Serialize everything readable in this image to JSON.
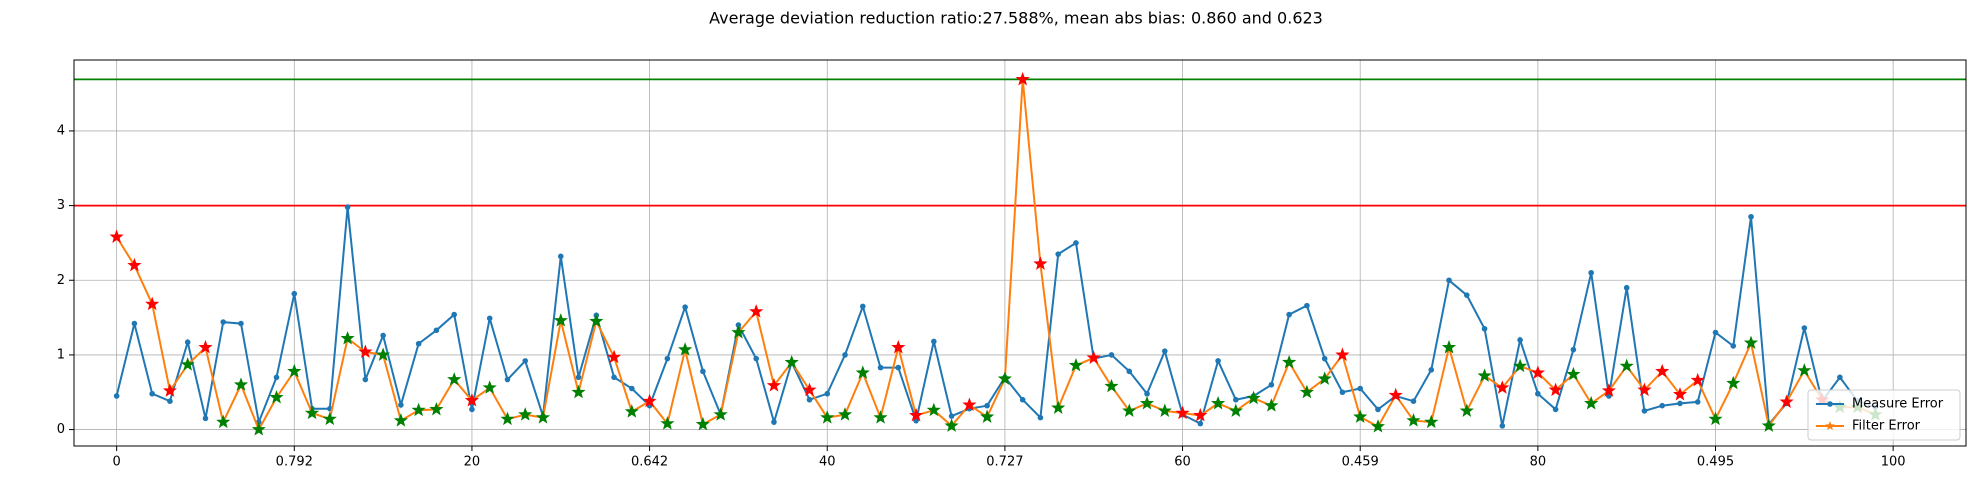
{
  "chart_data": {
    "type": "line",
    "title": "Average deviation reduction ratio:27.588%, mean abs bias: 0.860 and 0.623",
    "x": [
      0,
      1,
      2,
      3,
      4,
      5,
      6,
      7,
      8,
      9,
      10,
      11,
      12,
      13,
      14,
      15,
      16,
      17,
      18,
      19,
      20,
      21,
      22,
      23,
      24,
      25,
      26,
      27,
      28,
      29,
      30,
      31,
      32,
      33,
      34,
      35,
      36,
      37,
      38,
      39,
      40,
      41,
      42,
      43,
      44,
      45,
      46,
      47,
      48,
      49,
      50,
      51,
      52,
      53,
      54,
      55,
      56,
      57,
      58,
      59,
      60,
      61,
      62,
      63,
      64,
      65,
      66,
      67,
      68,
      69,
      70,
      71,
      72,
      73,
      74,
      75,
      76,
      77,
      78,
      79,
      80,
      81,
      82,
      83,
      84,
      85,
      86,
      87,
      88,
      89,
      90,
      91,
      92,
      93,
      94,
      95,
      96,
      97,
      98,
      99
    ],
    "series": [
      {
        "name": "Measure Error",
        "color": "#1f77b4",
        "marker": "dot",
        "values": [
          0.45,
          1.42,
          0.48,
          0.38,
          1.17,
          0.15,
          1.44,
          1.42,
          0.1,
          0.7,
          1.82,
          0.28,
          0.28,
          2.98,
          0.67,
          1.26,
          0.33,
          1.15,
          1.33,
          1.54,
          0.27,
          1.49,
          0.67,
          0.92,
          0.18,
          2.32,
          0.7,
          1.53,
          0.7,
          0.55,
          0.32,
          0.95,
          1.64,
          0.78,
          0.2,
          1.4,
          0.95,
          0.1,
          0.9,
          0.4,
          0.48,
          1.0,
          1.65,
          0.83,
          0.83,
          0.12,
          1.18,
          0.18,
          0.28,
          0.32,
          0.7,
          0.4,
          0.16,
          2.35,
          2.5,
          0.95,
          1.0,
          0.78,
          0.48,
          1.05,
          0.2,
          0.08,
          0.92,
          0.4,
          0.45,
          0.6,
          1.54,
          1.66,
          0.95,
          0.5,
          0.55,
          0.27,
          0.45,
          0.38,
          0.8,
          2.0,
          1.8,
          1.35,
          0.05,
          1.2,
          0.48,
          0.27,
          1.07,
          2.1,
          0.45,
          1.9,
          0.25,
          0.32,
          0.35,
          0.37,
          1.3,
          1.12,
          2.85,
          0.07,
          0.35,
          1.36,
          0.38,
          0.7,
          0.38,
          0.3
        ]
      },
      {
        "name": "Filter Error",
        "color": "#ff7f0e",
        "marker": "star",
        "values": [
          2.58,
          2.2,
          1.68,
          0.52,
          0.87,
          1.1,
          0.1,
          0.6,
          0.0,
          0.43,
          0.78,
          0.22,
          0.14,
          1.22,
          1.04,
          1.0,
          0.12,
          0.26,
          0.27,
          0.67,
          0.39,
          0.56,
          0.14,
          0.2,
          0.16,
          1.46,
          0.5,
          1.45,
          0.97,
          0.24,
          0.38,
          0.08,
          1.07,
          0.07,
          0.2,
          1.3,
          1.58,
          0.59,
          0.9,
          0.53,
          0.16,
          0.2,
          0.76,
          0.16,
          1.1,
          0.19,
          0.26,
          0.05,
          0.33,
          0.17,
          0.68,
          4.69,
          2.22,
          0.29,
          0.86,
          0.96,
          0.58,
          0.25,
          0.35,
          0.25,
          0.22,
          0.19,
          0.35,
          0.25,
          0.42,
          0.32,
          0.9,
          0.5,
          0.68,
          1.0,
          0.17,
          0.04,
          0.46,
          0.12,
          0.1,
          1.1,
          0.25,
          0.72,
          0.56,
          0.85,
          0.76,
          0.53,
          0.74,
          0.35,
          0.52,
          0.85,
          0.53,
          0.78,
          0.47,
          0.66,
          0.14,
          0.62,
          1.16,
          0.05,
          0.37,
          0.79,
          0.4,
          0.3,
          0.3,
          0.2
        ]
      }
    ],
    "better_color": "green",
    "worse_color": "red",
    "hlines": [
      {
        "value": 4.69,
        "color": "green"
      },
      {
        "value": 3,
        "color": "red"
      }
    ],
    "xlim": [
      -2.4,
      104.1
    ],
    "xticks": [
      0,
      {
        "value": 10,
        "label": "0.792"
      },
      20,
      {
        "value": 30,
        "label": "0.642"
      },
      40,
      {
        "value": 50,
        "label": "0.727"
      },
      60,
      {
        "value": 70,
        "label": "0.459"
      },
      80,
      {
        "value": 90,
        "label": "0.495"
      },
      100
    ],
    "ylim": [
      -0.22,
      4.95
    ],
    "yticks": [
      0,
      1,
      2,
      3,
      4
    ],
    "grid": true,
    "legend": "lower right"
  }
}
